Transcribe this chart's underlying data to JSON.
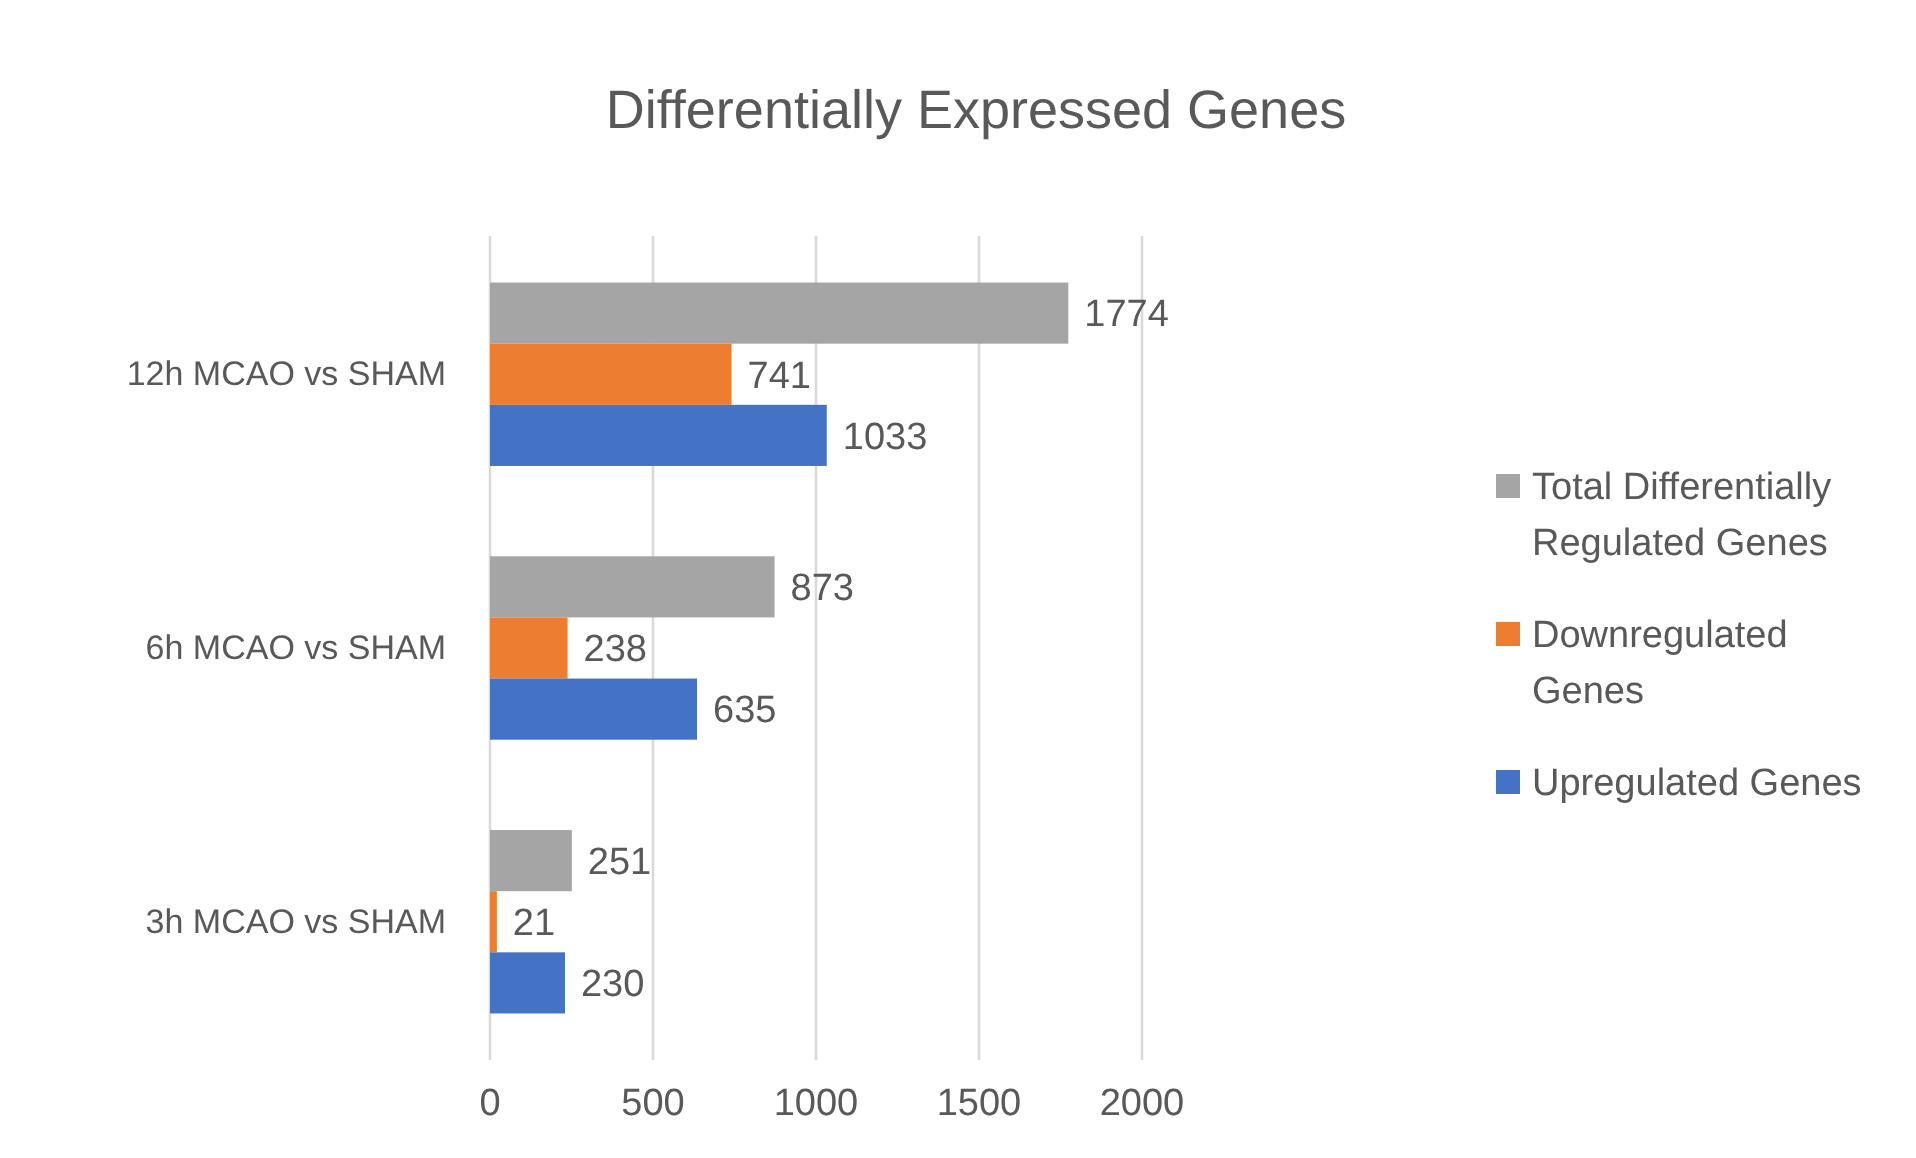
{
  "chart_data": {
    "type": "bar",
    "orientation": "horizontal",
    "title": "Differentially Expressed Genes",
    "categories": [
      "12h MCAO vs SHAM",
      "6h MCAO vs SHAM",
      "3h MCAO vs SHAM"
    ],
    "series": [
      {
        "name": "Total Differentially Regulated Genes",
        "color": "#a5a5a5",
        "values": [
          1774,
          873,
          251
        ]
      },
      {
        "name": "Downregulated Genes",
        "color": "#ed7d31",
        "values": [
          741,
          238,
          21
        ]
      },
      {
        "name": "Upregulated Genes",
        "color": "#4472c4",
        "values": [
          1033,
          635,
          230
        ]
      }
    ],
    "xlim": [
      0,
      2000
    ],
    "xticks": [
      0,
      500,
      1000,
      1500,
      2000
    ],
    "grid": "x",
    "legend": "right",
    "data_labels": true
  }
}
